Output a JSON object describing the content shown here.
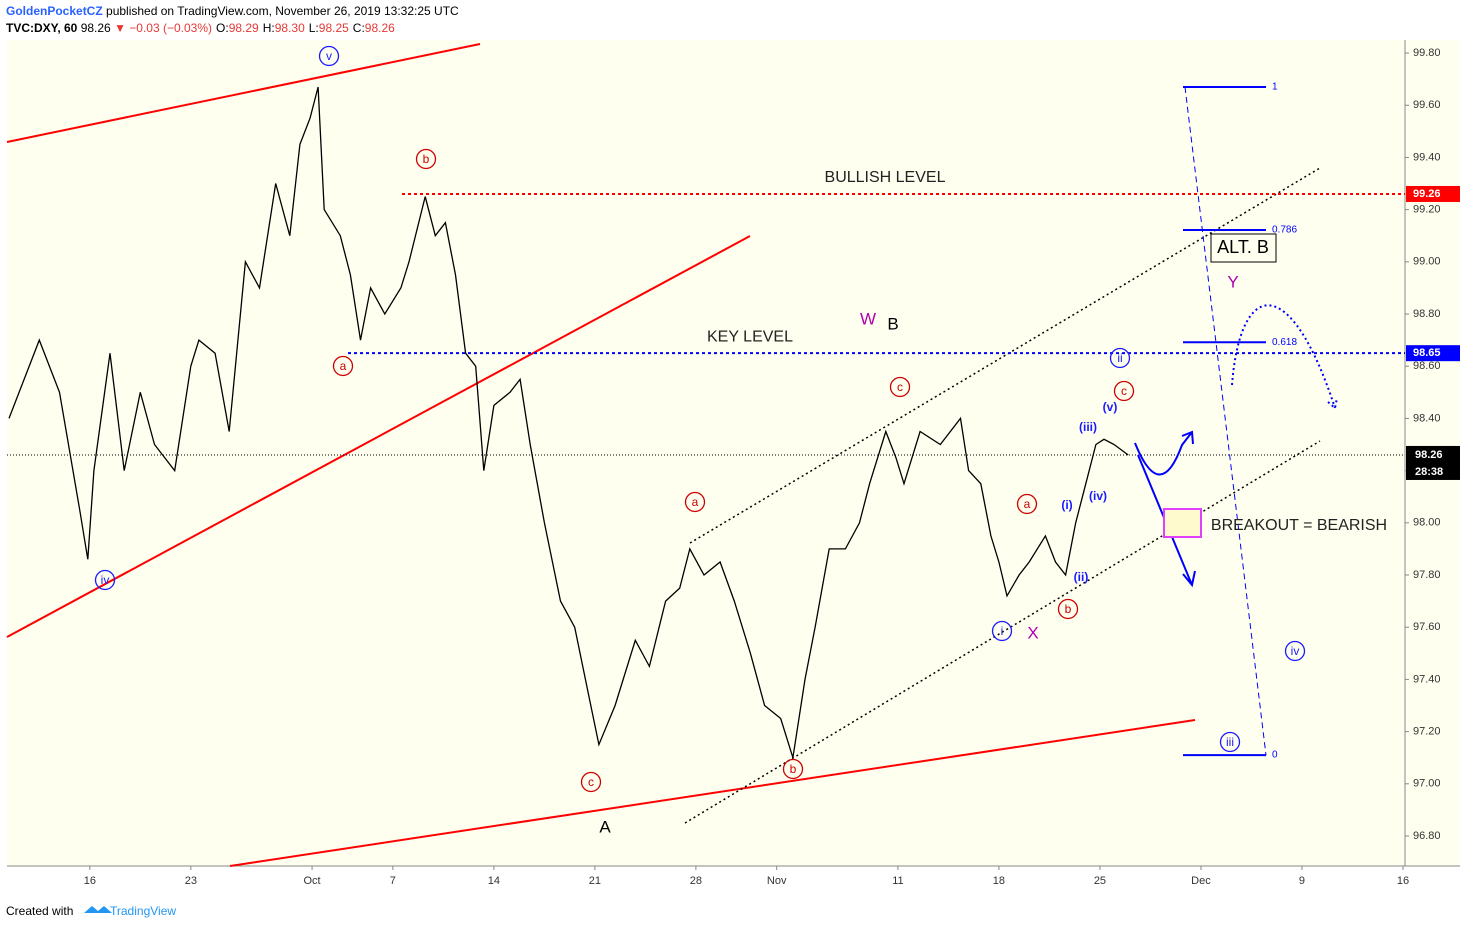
{
  "header": {
    "publisher": "GoldenPocketCZ",
    "published": "published on TradingView.com, November 26, 2019 13:32:25 UTC",
    "symbol": "TVC:DXY, 60",
    "price": "98.26",
    "change": "▼ −0.03 (−0.03%)",
    "ohlc": [
      {
        "k": "O:",
        "v": "98.29"
      },
      {
        "k": "H:",
        "v": "98.30"
      },
      {
        "k": "L:",
        "v": "98.25"
      },
      {
        "k": "C:",
        "v": "98.26"
      }
    ]
  },
  "footer": {
    "created": "Created with",
    "brand": "TradingView"
  },
  "chart_data": {
    "type": "line",
    "color": "#000000",
    "x": [
      -4.0,
      -2.5,
      -1.5,
      -0.5,
      -0.1,
      0.2,
      1.0,
      1.7,
      2.5,
      3.2,
      4.2,
      5.0,
      5.4,
      6.2,
      6.9,
      7.7,
      8.4,
      9.2,
      9.9,
      10.4,
      10.9,
      11.3,
      11.6,
      12.4,
      12.9,
      13.4,
      13.9,
      14.6,
      15.4,
      15.8,
      16.6,
      17.1,
      17.6,
      18.1,
      18.6,
      19.1,
      19.5,
      20.0,
      20.8,
      21.3,
      21.8,
      22.5,
      23.3,
      24.0,
      24.8,
      25.2,
      26.0,
      27.0,
      27.7,
      28.5,
      29.2,
      29.7,
      30.4,
      31.2,
      31.9,
      32.7,
      33.4,
      34.2,
      34.8,
      35.4,
      35.9,
      36.6,
      37.4,
      38.1,
      38.6,
      39.4,
      39.9,
      40.3,
      41.1,
      42.1,
      43.1,
      43.5,
      44.1,
      44.6,
      45.0,
      45.4,
      46.0,
      46.5,
      47.3,
      47.8,
      48.3,
      48.8,
      49.3,
      49.8,
      50.2,
      50.7,
      51.4
    ],
    "values": [
      98.4,
      98.7,
      98.5,
      98.05,
      97.86,
      98.2,
      98.65,
      98.2,
      98.5,
      98.3,
      98.2,
      98.6,
      98.7,
      98.65,
      98.35,
      99.0,
      98.9,
      99.3,
      99.1,
      99.45,
      99.55,
      99.67,
      99.2,
      99.1,
      98.95,
      98.7,
      98.9,
      98.8,
      98.9,
      99.0,
      99.25,
      99.1,
      99.15,
      98.95,
      98.65,
      98.6,
      98.2,
      98.45,
      98.5,
      98.55,
      98.3,
      98.0,
      97.7,
      97.6,
      97.3,
      97.15,
      97.3,
      97.55,
      97.45,
      97.7,
      97.75,
      97.9,
      97.8,
      97.85,
      97.7,
      97.5,
      97.3,
      97.25,
      97.1,
      97.4,
      97.6,
      97.9,
      97.9,
      98.0,
      98.15,
      98.35,
      98.25,
      98.15,
      98.35,
      98.3,
      98.4,
      98.2,
      98.15,
      97.95,
      97.85,
      97.72,
      97.8,
      97.85,
      97.95,
      97.85,
      97.8,
      98.0,
      98.15,
      98.3,
      98.32,
      98.3,
      98.26
    ],
    "xlim": [
      -4.1,
      65.1
    ],
    "ylim": [
      96.685,
      99.85
    ],
    "xticks": [
      {
        "value": 0,
        "label": "16"
      },
      {
        "value": 5,
        "label": "23"
      },
      {
        "value": 11,
        "label": "Oct"
      },
      {
        "value": 15,
        "label": "7"
      },
      {
        "value": 20,
        "label": "14"
      },
      {
        "value": 25,
        "label": "21"
      },
      {
        "value": 30,
        "label": "28"
      },
      {
        "value": 34,
        "label": "Nov"
      },
      {
        "value": 40,
        "label": "11"
      },
      {
        "value": 45,
        "label": "18"
      },
      {
        "value": 50,
        "label": "25"
      },
      {
        "value": 55,
        "label": "Dec"
      },
      {
        "value": 60,
        "label": "9"
      },
      {
        "value": 65,
        "label": "16"
      }
    ],
    "yticks": [
      {
        "value": 99.8,
        "label": "99.80"
      },
      {
        "value": 99.6,
        "label": "99.60"
      },
      {
        "value": 99.4,
        "label": "99.40"
      },
      {
        "value": 99.2,
        "label": "99.20"
      },
      {
        "value": 99.0,
        "label": "99.00"
      },
      {
        "value": 98.8,
        "label": "98.80"
      },
      {
        "value": 98.6,
        "label": "98.60"
      },
      {
        "value": 98.4,
        "label": "98.40"
      },
      {
        "value": 98.2,
        "label": "98.20"
      },
      {
        "value": 98.0,
        "label": "98.00"
      },
      {
        "value": 97.8,
        "label": "97.80"
      },
      {
        "value": 97.6,
        "label": "97.60"
      },
      {
        "value": 97.4,
        "label": "97.40"
      },
      {
        "value": 97.2,
        "label": "97.20"
      },
      {
        "value": 97.0,
        "label": "97.00"
      },
      {
        "value": 96.8,
        "label": "96.80"
      }
    ],
    "last": 98.26,
    "countdown": "28:38",
    "levels": [
      {
        "name": "BULLISH LEVEL",
        "value": 99.26,
        "color": "#ff0000"
      },
      {
        "name": "KEY LEVEL",
        "value": 98.65,
        "color": "#0000ff"
      }
    ],
    "fib": {
      "high": 99.67,
      "low": 97.11,
      "levels": [
        1,
        0.786,
        0.618,
        0
      ],
      "color": "#0000ff"
    },
    "annotations": [
      "v",
      "b",
      "a",
      "iv",
      "c",
      "A",
      "a",
      "b",
      "W",
      "B",
      "c",
      "i",
      "X",
      "a",
      "b",
      "(i)",
      "(ii)",
      "(iii)",
      "(iv)",
      "(v)",
      "c",
      "ii",
      "Y",
      "iii",
      "iv"
    ],
    "notes": [
      "ALT. B",
      "BREAKOUT = BEARISH"
    ]
  }
}
